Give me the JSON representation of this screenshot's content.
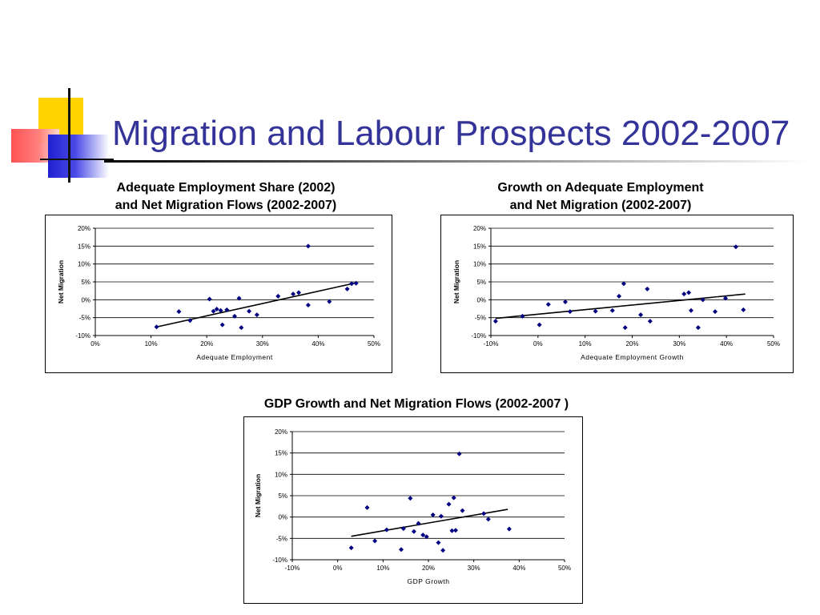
{
  "slide": {
    "title": "Migration and Labour Prospects 2002-2007"
  },
  "chart_data": [
    {
      "type": "scatter",
      "title_line1": "Adequate Employment Share (2002)",
      "title_line2": "and Net Migration Flows (2002-2007)",
      "xlabel": "Adequate Employment",
      "ylabel": "Net Migration",
      "xlim": [
        0,
        0.5
      ],
      "ylim": [
        -0.1,
        0.2
      ],
      "xticks": [
        0,
        0.1,
        0.2,
        0.3,
        0.4,
        0.5
      ],
      "yticks": [
        -0.1,
        -0.05,
        0,
        0.05,
        0.1,
        0.15,
        0.2
      ],
      "xtick_labels": [
        "0%",
        "10%",
        "20%",
        "30%",
        "40%",
        "50%"
      ],
      "ytick_labels": [
        "-10%",
        "-5%",
        "0%",
        "5%",
        "10%",
        "15%",
        "20%"
      ],
      "grid": "horizontal",
      "marker_color": "#000080",
      "trendline": [
        [
          0.11,
          -0.076
        ],
        [
          0.47,
          0.048
        ]
      ],
      "points": [
        [
          0.11,
          -0.076
        ],
        [
          0.15,
          -0.033
        ],
        [
          0.17,
          -0.058
        ],
        [
          0.205,
          0.002
        ],
        [
          0.212,
          -0.032
        ],
        [
          0.218,
          -0.026
        ],
        [
          0.225,
          -0.03
        ],
        [
          0.228,
          -0.07
        ],
        [
          0.236,
          -0.028
        ],
        [
          0.25,
          -0.046
        ],
        [
          0.258,
          0.004
        ],
        [
          0.262,
          -0.078
        ],
        [
          0.276,
          -0.032
        ],
        [
          0.29,
          -0.042
        ],
        [
          0.328,
          0.01
        ],
        [
          0.355,
          0.016
        ],
        [
          0.365,
          0.02
        ],
        [
          0.382,
          -0.015
        ],
        [
          0.382,
          0.15
        ],
        [
          0.42,
          -0.005
        ],
        [
          0.452,
          0.03
        ],
        [
          0.46,
          0.045
        ],
        [
          0.468,
          0.046
        ]
      ]
    },
    {
      "type": "scatter",
      "title_line1": "Growth on Adequate Employment",
      "title_line2": "and Net Migration (2002-2007)",
      "xlabel": "Adequate Employment Growth",
      "ylabel": "Net Migration",
      "xlim": [
        -0.1,
        0.5
      ],
      "ylim": [
        -0.1,
        0.2
      ],
      "xticks": [
        -0.1,
        0,
        0.1,
        0.2,
        0.3,
        0.4,
        0.5
      ],
      "yticks": [
        -0.1,
        -0.05,
        0,
        0.05,
        0.1,
        0.15,
        0.2
      ],
      "xtick_labels": [
        "-10%",
        "0%",
        "10%",
        "20%",
        "30%",
        "40%",
        "50%"
      ],
      "ytick_labels": [
        "-10%",
        "-5%",
        "0%",
        "5%",
        "10%",
        "15%",
        "20%"
      ],
      "grid": "horizontal",
      "marker_color": "#000080",
      "trendline": [
        [
          -0.09,
          -0.052
        ],
        [
          0.44,
          0.016
        ]
      ],
      "points": [
        [
          -0.09,
          -0.06
        ],
        [
          -0.033,
          -0.046
        ],
        [
          0.003,
          -0.07
        ],
        [
          0.022,
          -0.013
        ],
        [
          0.058,
          -0.006
        ],
        [
          0.068,
          -0.033
        ],
        [
          0.122,
          -0.032
        ],
        [
          0.158,
          -0.03
        ],
        [
          0.172,
          0.01
        ],
        [
          0.182,
          0.045
        ],
        [
          0.185,
          -0.078
        ],
        [
          0.218,
          -0.042
        ],
        [
          0.232,
          0.03
        ],
        [
          0.238,
          -0.06
        ],
        [
          0.31,
          0.016
        ],
        [
          0.32,
          0.02
        ],
        [
          0.325,
          -0.03
        ],
        [
          0.34,
          -0.078
        ],
        [
          0.35,
          0.0
        ],
        [
          0.376,
          -0.033
        ],
        [
          0.398,
          0.004
        ],
        [
          0.42,
          0.148
        ],
        [
          0.436,
          -0.028
        ]
      ]
    },
    {
      "type": "scatter",
      "title_line1": "GDP Growth and Net Migration Flows (2002-2007 )",
      "title_line2": "",
      "xlabel": "GDP Growth",
      "ylabel": "Net Migration",
      "xlim": [
        -0.1,
        0.5
      ],
      "ylim": [
        -0.1,
        0.2
      ],
      "xticks": [
        -0.1,
        0,
        0.1,
        0.2,
        0.3,
        0.4,
        0.5
      ],
      "yticks": [
        -0.1,
        -0.05,
        0,
        0.05,
        0.1,
        0.15,
        0.2
      ],
      "xtick_labels": [
        "-10%",
        "0%",
        "10%",
        "20%",
        "30%",
        "40%",
        "50%"
      ],
      "ytick_labels": [
        "-10%",
        "-5%",
        "0%",
        "5%",
        "10%",
        "15%",
        "20%"
      ],
      "grid": "horizontal",
      "marker_color": "#000080",
      "trendline": [
        [
          0.03,
          -0.045
        ],
        [
          0.375,
          0.018
        ]
      ],
      "points": [
        [
          0.03,
          -0.072
        ],
        [
          0.065,
          0.022
        ],
        [
          0.082,
          -0.056
        ],
        [
          0.108,
          -0.03
        ],
        [
          0.14,
          -0.076
        ],
        [
          0.145,
          -0.027
        ],
        [
          0.16,
          0.044
        ],
        [
          0.168,
          -0.034
        ],
        [
          0.178,
          -0.015
        ],
        [
          0.188,
          -0.042
        ],
        [
          0.196,
          -0.046
        ],
        [
          0.21,
          0.005
        ],
        [
          0.222,
          -0.06
        ],
        [
          0.228,
          0.002
        ],
        [
          0.232,
          -0.078
        ],
        [
          0.245,
          0.03
        ],
        [
          0.252,
          -0.032
        ],
        [
          0.256,
          0.045
        ],
        [
          0.26,
          -0.031
        ],
        [
          0.268,
          0.148
        ],
        [
          0.275,
          0.015
        ],
        [
          0.322,
          0.008
        ],
        [
          0.332,
          -0.005
        ],
        [
          0.378,
          -0.028
        ]
      ]
    }
  ]
}
